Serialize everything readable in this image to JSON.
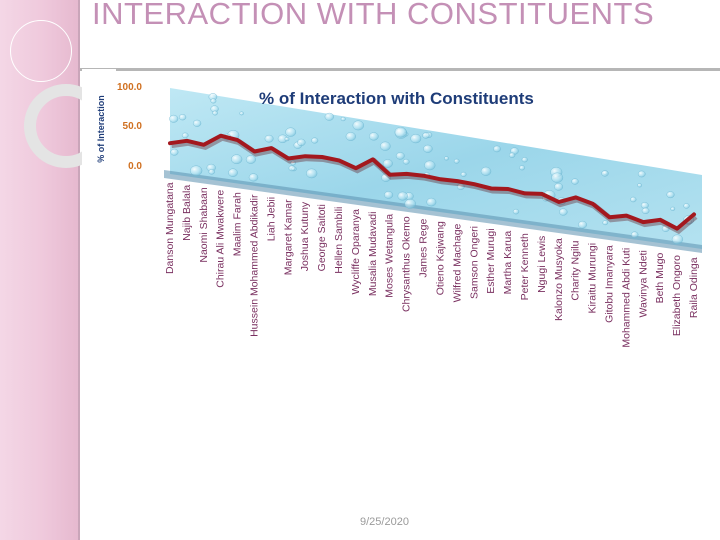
{
  "slide": {
    "title": "INTERACTION WITH CONSTITUENTS",
    "footer_date": "9/25/2020",
    "accent_color": "#c490b6",
    "sidebar_color": "#efc9dc"
  },
  "chart_data": {
    "type": "line",
    "title": "% of Interaction with Constituents",
    "xlabel": "",
    "ylabel": "% of Interaction",
    "yticks": [
      "100.0",
      "50.0",
      "0.0"
    ],
    "ylim": [
      0,
      100
    ],
    "grid": false,
    "legend": "none",
    "line_color": "#a3181e",
    "background": "water-drop texture (light blue)",
    "categories": [
      "Danson Mungatana",
      "Najib Balala",
      "Naomi Shabaan",
      "Chirau Ali Mwakwere",
      "Maalim Farah",
      "Hussein Mohammed Abdikadir",
      "Liah Jebii",
      "Margaret Kamar",
      "Joshua Kutuny",
      "George Saitoti",
      "Hellen Sambili",
      "Wycliffe Oparanya",
      "Musalia Mudavadi",
      "Moses Wetangula",
      "Chrysanthus Okemo",
      "James Rege",
      "Otieno Kajwang",
      "Wilfred Machage",
      "Samson Ongeri",
      "Esther Murugi",
      "Martha Karua",
      "Peter Kenneth",
      "Ngugi Lewis",
      "Kalonzo Musyoka",
      "Charity Ngilu",
      "Kiraitu Murungi",
      "Gitobu Imanyara",
      "Mohammed Abdi Kuti",
      "Wavinya Ndeti",
      "Beth Mugo",
      "Elizabeth Ongoro",
      "Raila Odinga"
    ],
    "values": [
      40,
      55,
      50,
      86,
      80,
      52,
      70,
      45,
      60,
      65,
      62,
      45,
      80,
      40,
      50,
      52,
      48,
      50,
      48,
      42,
      48,
      42,
      48,
      30,
      52,
      40,
      5,
      18,
      5,
      20,
      0,
      52
    ]
  }
}
